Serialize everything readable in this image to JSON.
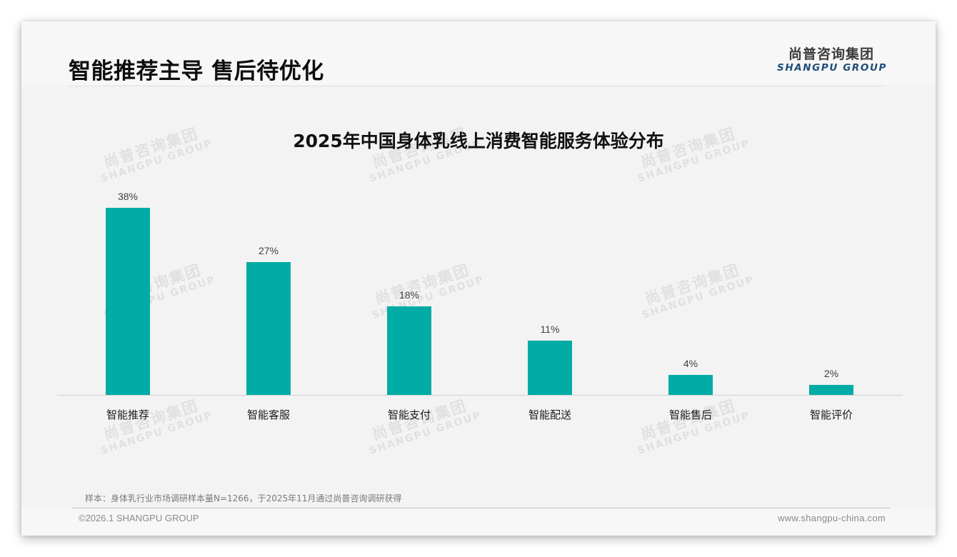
{
  "header": {
    "title": "智能推荐主导 售后待优化",
    "logo_cn": "尚普咨询集团",
    "logo_en": "SHANGPU GROUP"
  },
  "watermark": {
    "cn": "尚普咨询集团",
    "en": "SHANGPU GROUP"
  },
  "colors": {
    "bar": "#00aca5",
    "logo_en": "#1f4e79"
  },
  "chart_data": {
    "type": "bar",
    "title": "2025年中国身体乳线上消费智能服务体验分布",
    "categories": [
      "智能推荐",
      "智能客服",
      "智能支付",
      "智能配送",
      "智能售后",
      "智能评价"
    ],
    "values": [
      38,
      27,
      18,
      11,
      4,
      2
    ],
    "value_labels": [
      "38%",
      "27%",
      "18%",
      "11%",
      "4%",
      "2%"
    ],
    "unit": "%",
    "xlabel": "",
    "ylabel": "",
    "ylim": [
      0,
      40
    ],
    "grid": false,
    "legend": null,
    "series_color": "#00aca5"
  },
  "footer": {
    "sample_note": "样本：身体乳行业市场调研样本量N=1266，于2025年11月通过尚普咨询调研获得",
    "copyright": "©2026.1 SHANGPU GROUP",
    "website": "www.shangpu-china.com"
  }
}
